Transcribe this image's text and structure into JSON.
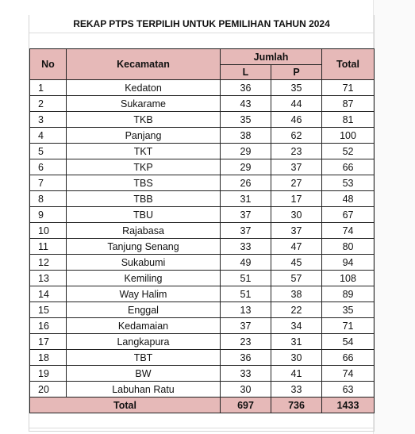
{
  "title": "REKAP PTPS TERPILIH UNTUK PEMILIHAN TAHUN 2024",
  "headers": {
    "no": "No",
    "kecamatan": "Kecamatan",
    "jumlah": "Jumlah",
    "l": "L",
    "p": "P",
    "total": "Total"
  },
  "rows": [
    {
      "no": "1",
      "kecamatan": "Kedaton",
      "l": "36",
      "p": "35",
      "total": "71"
    },
    {
      "no": "2",
      "kecamatan": "Sukarame",
      "l": "43",
      "p": "44",
      "total": "87"
    },
    {
      "no": "3",
      "kecamatan": "TKB",
      "l": "35",
      "p": "46",
      "total": "81"
    },
    {
      "no": "4",
      "kecamatan": "Panjang",
      "l": "38",
      "p": "62",
      "total": "100"
    },
    {
      "no": "5",
      "kecamatan": "TKT",
      "l": "29",
      "p": "23",
      "total": "52"
    },
    {
      "no": "6",
      "kecamatan": "TKP",
      "l": "29",
      "p": "37",
      "total": "66"
    },
    {
      "no": "7",
      "kecamatan": "TBS",
      "l": "26",
      "p": "27",
      "total": "53"
    },
    {
      "no": "8",
      "kecamatan": "TBB",
      "l": "31",
      "p": "17",
      "total": "48"
    },
    {
      "no": "9",
      "kecamatan": "TBU",
      "l": "37",
      "p": "30",
      "total": "67"
    },
    {
      "no": "10",
      "kecamatan": "Rajabasa",
      "l": "37",
      "p": "37",
      "total": "74"
    },
    {
      "no": "11",
      "kecamatan": "Tanjung Senang",
      "l": "33",
      "p": "47",
      "total": "80"
    },
    {
      "no": "12",
      "kecamatan": "Sukabumi",
      "l": "49",
      "p": "45",
      "total": "94"
    },
    {
      "no": "13",
      "kecamatan": "Kemiling",
      "l": "51",
      "p": "57",
      "total": "108"
    },
    {
      "no": "14",
      "kecamatan": "Way Halim",
      "l": "51",
      "p": "38",
      "total": "89"
    },
    {
      "no": "15",
      "kecamatan": "Enggal",
      "l": "13",
      "p": "22",
      "total": "35"
    },
    {
      "no": "16",
      "kecamatan": "Kedamaian",
      "l": "37",
      "p": "34",
      "total": "71"
    },
    {
      "no": "17",
      "kecamatan": "Langkapura",
      "l": "23",
      "p": "31",
      "total": "54"
    },
    {
      "no": "18",
      "kecamatan": "TBT",
      "l": "36",
      "p": "30",
      "total": "66"
    },
    {
      "no": "19",
      "kecamatan": "BW",
      "l": "33",
      "p": "41",
      "total": "74"
    },
    {
      "no": "20",
      "kecamatan": "Labuhan Ratu",
      "l": "30",
      "p": "33",
      "total": "63"
    }
  ],
  "total_row": {
    "label": "Total",
    "l": "697",
    "p": "736",
    "total": "1433"
  },
  "colors": {
    "header_fill": "#e6b9b8",
    "border": "#222222",
    "gridline": "#d4d4d4"
  }
}
